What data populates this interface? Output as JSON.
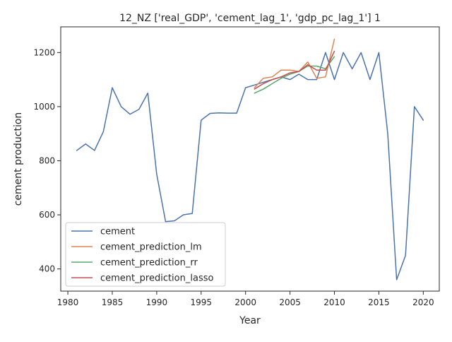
{
  "chart_data": {
    "type": "line",
    "title": "12_NZ ['real_GDP', 'cement_lag_1', 'gdp_pc_lag_1'] 1",
    "xlabel": "Year",
    "ylabel": "cement production",
    "xlim": [
      1979.2,
      2021.8
    ],
    "ylim": [
      318,
      1295
    ],
    "xticks": [
      1980,
      1985,
      1990,
      1995,
      2000,
      2005,
      2010,
      2015,
      2020
    ],
    "yticks": [
      400,
      600,
      800,
      1000,
      1200
    ],
    "grid": false,
    "legend": "lower-left",
    "series": [
      {
        "name": "cement",
        "color": "#4c72b0",
        "x": [
          1981,
          1982,
          1983,
          1984,
          1985,
          1986,
          1987,
          1988,
          1989,
          1990,
          1991,
          1992,
          1993,
          1994,
          1995,
          1996,
          1997,
          1998,
          1999,
          2000,
          2001,
          2002,
          2003,
          2004,
          2005,
          2006,
          2007,
          2008,
          2009,
          2010,
          2011,
          2012,
          2013,
          2014,
          2015,
          2016,
          2017,
          2018,
          2019,
          2020
        ],
        "values": [
          838,
          862,
          838,
          908,
          1070,
          1000,
          972,
          990,
          1050,
          750,
          575,
          578,
          600,
          605,
          950,
          975,
          977,
          976,
          976,
          1070,
          1080,
          1090,
          1100,
          1110,
          1100,
          1120,
          1100,
          1100,
          1200,
          1100,
          1200,
          1140,
          1200,
          1100,
          1200,
          900,
          360,
          450,
          1000,
          950
        ]
      },
      {
        "name": "cement_prediction_lm",
        "color": "#dd8452",
        "x": [
          2001,
          2002,
          2003,
          2004,
          2005,
          2006,
          2007,
          2008,
          2009,
          2010
        ],
        "values": [
          1070,
          1105,
          1110,
          1135,
          1135,
          1130,
          1165,
          1105,
          1110,
          1250
        ]
      },
      {
        "name": "cement_prediction_rr",
        "color": "#55a868",
        "x": [
          2001,
          2002,
          2003,
          2004,
          2005,
          2006,
          2007,
          2008,
          2009,
          2010
        ],
        "values": [
          1050,
          1065,
          1085,
          1105,
          1120,
          1130,
          1150,
          1150,
          1140,
          1185
        ]
      },
      {
        "name": "cement_prediction_lasso",
        "color": "#c44e52",
        "x": [
          2001,
          2002,
          2003,
          2004,
          2005,
          2006,
          2007,
          2008,
          2009,
          2010
        ],
        "values": [
          1065,
          1085,
          1100,
          1110,
          1125,
          1130,
          1155,
          1135,
          1135,
          1205
        ]
      }
    ]
  }
}
